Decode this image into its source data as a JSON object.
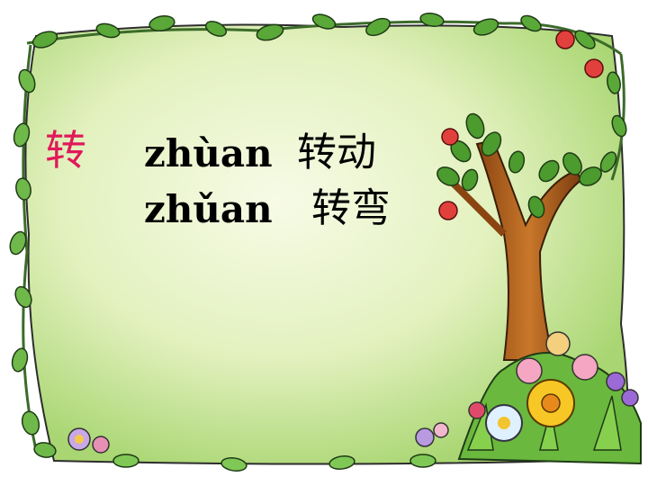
{
  "slide": {
    "character": "转",
    "readings": [
      {
        "pinyin": "zhùan",
        "word": "转动"
      },
      {
        "pinyin": "zhǔan",
        "word": "转弯"
      }
    ]
  },
  "colors": {
    "character": "#e0195a",
    "text": "#000000",
    "board_light": "#f2f8d8",
    "board_edge": "#a9d672",
    "leaf": "#3f8f2a",
    "trunk": "#b9651f"
  },
  "decor": {
    "frame": "leafy-vine-frame",
    "tree": "apple-tree",
    "flowers": "flower-bed"
  }
}
